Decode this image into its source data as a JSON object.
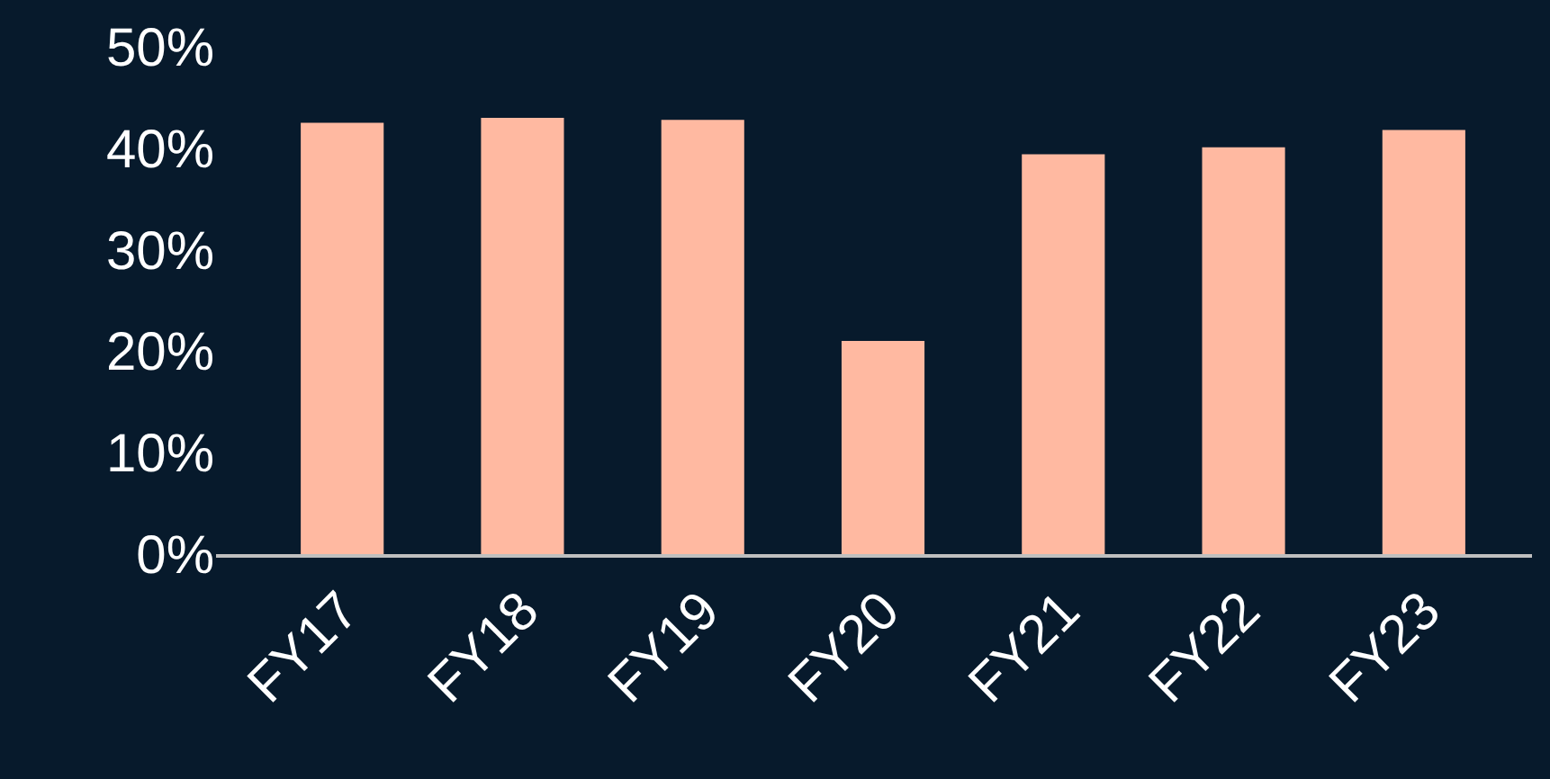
{
  "chart_data": {
    "type": "bar",
    "categories": [
      "FY17",
      "FY18",
      "FY19",
      "FY20",
      "FY21",
      "FY22",
      "FY23"
    ],
    "values": [
      42.5,
      43,
      42.8,
      21,
      39.4,
      40.1,
      41.8
    ],
    "color": "#ffb9a1",
    "ylim": [
      0,
      50
    ],
    "yticks": [
      {
        "value": 0,
        "label": "0%"
      },
      {
        "value": 10,
        "label": "10%"
      },
      {
        "value": 20,
        "label": "20%"
      },
      {
        "value": 30,
        "label": "30%"
      },
      {
        "value": 40,
        "label": "40%"
      },
      {
        "value": 50,
        "label": "50%"
      }
    ],
    "grid": false
  }
}
